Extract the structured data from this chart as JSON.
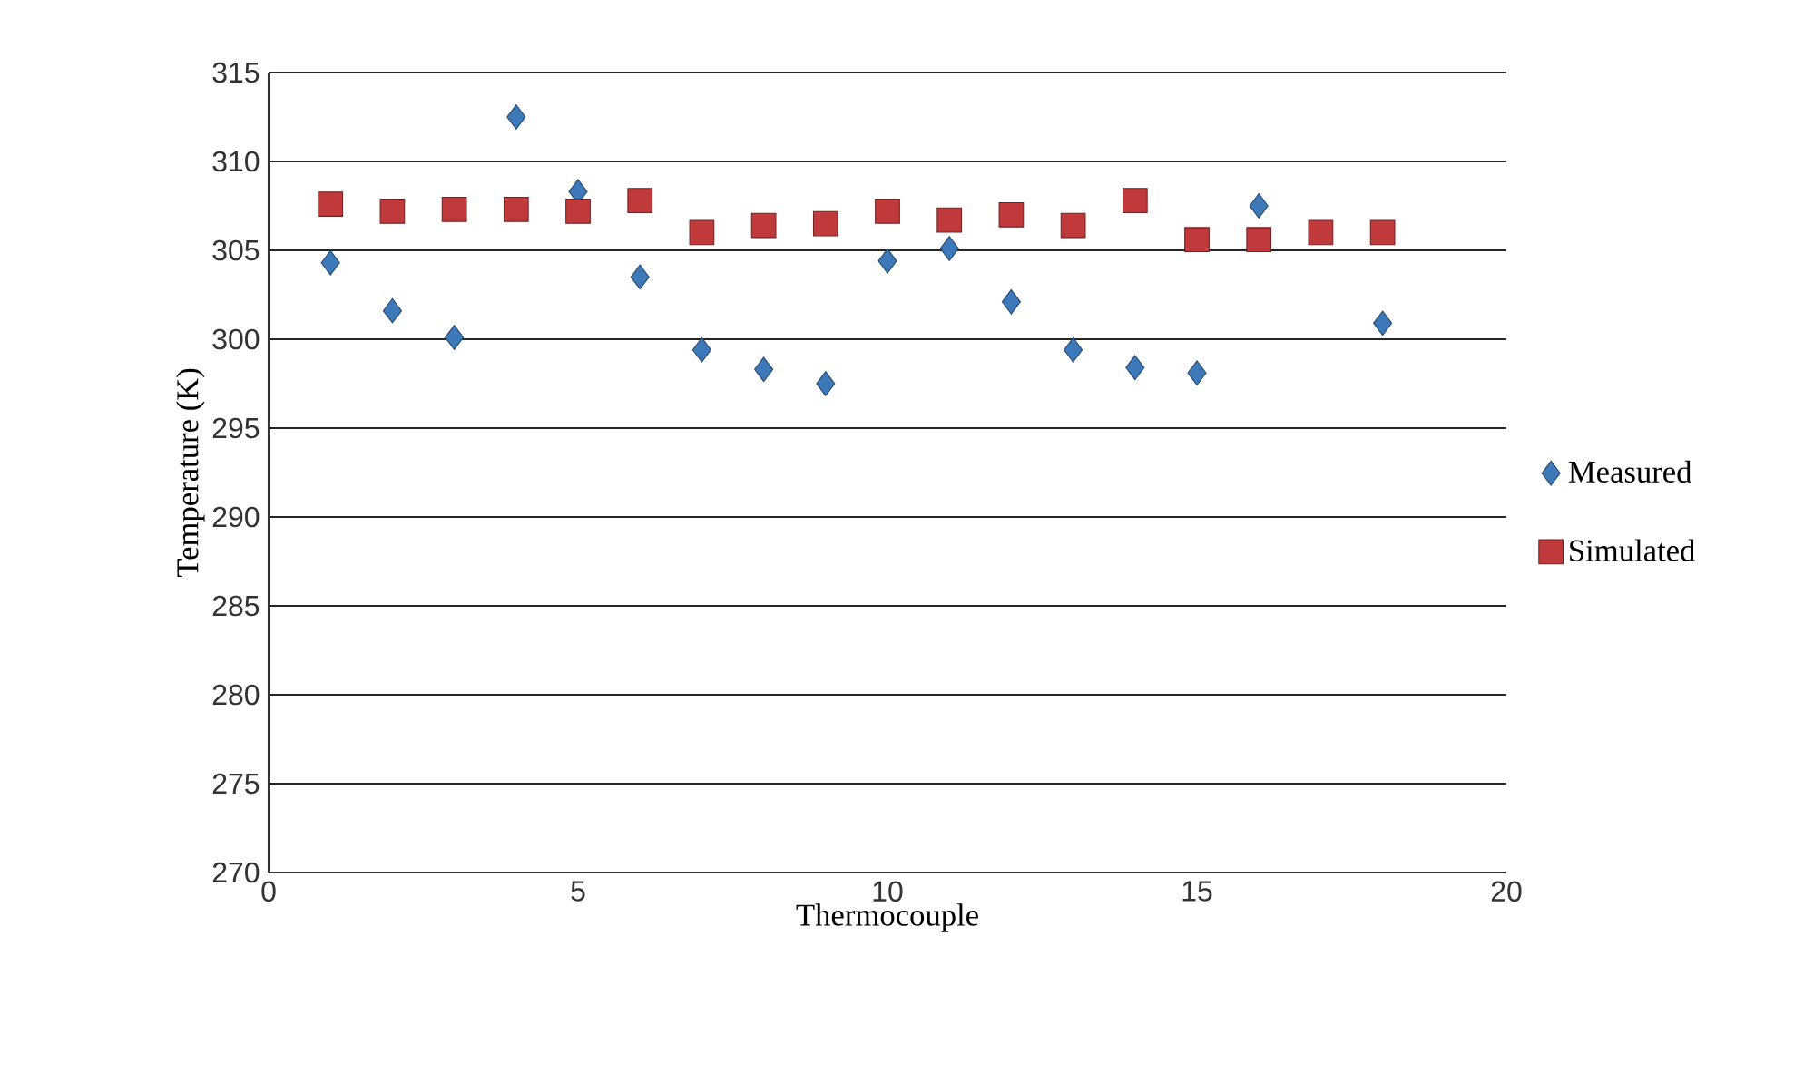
{
  "chart_data": {
    "type": "scatter",
    "xlabel": "Thermocouple",
    "ylabel": "Temperature  (K)",
    "x": [
      1,
      2,
      3,
      4,
      5,
      6,
      7,
      8,
      9,
      10,
      11,
      12,
      13,
      14,
      15,
      16,
      17,
      18
    ],
    "series": [
      {
        "name": "Measured",
        "color": "#3d78b8",
        "marker": "diamond",
        "values": [
          304.3,
          301.6,
          300.1,
          312.5,
          308.3,
          303.5,
          299.4,
          298.3,
          297.5,
          304.4,
          305.1,
          302.1,
          299.4,
          298.4,
          298.1,
          307.5,
          null,
          300.9
        ]
      },
      {
        "name": "Simulated",
        "color": "#c0393b",
        "marker": "square",
        "values": [
          307.6,
          307.2,
          307.3,
          307.3,
          307.2,
          307.8,
          306.0,
          306.4,
          306.5,
          307.2,
          306.7,
          307.0,
          306.4,
          307.8,
          305.6,
          305.6,
          306.0,
          306.0
        ]
      }
    ],
    "xlim": [
      0,
      20
    ],
    "xticks": [
      0,
      5,
      10,
      15,
      20
    ],
    "ylim": [
      270,
      315
    ],
    "yticks": [
      270,
      275,
      280,
      285,
      290,
      295,
      300,
      305,
      310,
      315
    ],
    "grid": "y",
    "legend": "right"
  }
}
